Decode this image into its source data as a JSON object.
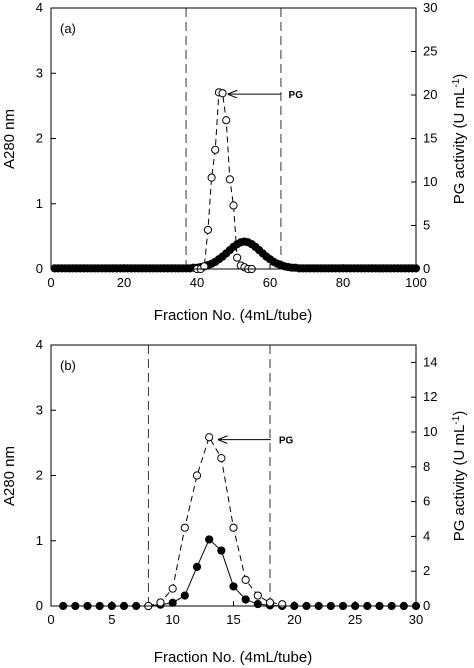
{
  "chart_data": [
    {
      "type": "line",
      "panel_label": "(a)",
      "xlabel": "Fraction No. (4mL/tube)",
      "ylabel": "A280 nm",
      "ylabel_right": "PG activity (U mL",
      "ylabel_right_sup": "-1",
      "ylabel_right_close": ")",
      "xlim": [
        0,
        100
      ],
      "ylim": [
        0,
        4
      ],
      "ylim_right": [
        0,
        30
      ],
      "xticks": [
        0,
        20,
        40,
        60,
        80,
        100
      ],
      "yticks": [
        0,
        1,
        2,
        3,
        4
      ],
      "yticks_right": [
        0,
        5,
        10,
        15,
        20,
        25,
        30
      ],
      "vlines": [
        37,
        63
      ],
      "annotation": {
        "text": "PG",
        "x": 47,
        "y": 2.68
      },
      "series": [
        {
          "axis": "left",
          "marker": "filled",
          "line": "solid",
          "x": [
            1,
            2,
            3,
            4,
            5,
            6,
            7,
            8,
            9,
            10,
            11,
            12,
            13,
            14,
            15,
            16,
            17,
            18,
            19,
            20,
            21,
            22,
            23,
            24,
            25,
            26,
            27,
            28,
            29,
            30,
            31,
            32,
            33,
            34,
            35,
            36,
            37,
            38,
            39,
            40,
            41,
            42,
            43,
            44,
            45,
            46,
            47,
            48,
            49,
            50,
            51,
            52,
            53,
            54,
            55,
            56,
            57,
            58,
            59,
            60,
            61,
            62,
            63,
            64,
            65,
            66,
            67,
            68,
            69,
            70,
            71,
            72,
            73,
            74,
            75,
            76,
            77,
            78,
            79,
            80,
            81,
            82,
            83,
            84,
            85,
            86,
            87,
            88,
            89,
            90,
            91,
            92,
            93,
            94,
            95,
            96,
            97,
            98,
            99,
            100
          ],
          "y": [
            0.01,
            0.01,
            0.01,
            0.01,
            0.01,
            0.01,
            0.01,
            0.01,
            0.01,
            0.01,
            0.01,
            0.01,
            0.01,
            0.01,
            0.01,
            0.01,
            0.01,
            0.01,
            0.01,
            0.01,
            0.01,
            0.01,
            0.01,
            0.01,
            0.01,
            0.01,
            0.01,
            0.01,
            0.01,
            0.01,
            0.01,
            0.01,
            0.01,
            0.01,
            0.01,
            0.01,
            0.01,
            0.01,
            0.02,
            0.02,
            0.03,
            0.04,
            0.06,
            0.08,
            0.11,
            0.15,
            0.19,
            0.24,
            0.29,
            0.34,
            0.38,
            0.41,
            0.42,
            0.41,
            0.38,
            0.34,
            0.29,
            0.24,
            0.19,
            0.15,
            0.11,
            0.08,
            0.06,
            0.04,
            0.03,
            0.02,
            0.02,
            0.01,
            0.01,
            0.01,
            0.01,
            0.01,
            0.01,
            0.01,
            0.01,
            0.01,
            0.01,
            0.01,
            0.01,
            0.01,
            0.01,
            0.01,
            0.01,
            0.01,
            0.01,
            0.01,
            0.01,
            0.01,
            0.01,
            0.01,
            0.01,
            0.01,
            0.01,
            0.01,
            0.01,
            0.01,
            0.01,
            0.01,
            0.01,
            0.01
          ]
        },
        {
          "axis": "right",
          "marker": "open",
          "line": "dashed",
          "x": [
            40,
            41,
            42,
            43,
            44,
            45,
            46,
            47,
            48,
            49,
            50,
            51,
            52,
            53,
            54,
            55
          ],
          "y": [
            0,
            0,
            0.3,
            4.5,
            10.5,
            13.7,
            20.3,
            20.2,
            17.1,
            10.3,
            7.3,
            1.3,
            0.4,
            0.2,
            0,
            0
          ]
        }
      ]
    },
    {
      "type": "line",
      "panel_label": "(b)",
      "xlabel": "Fraction No. (4mL/tube)",
      "ylabel": "A280 nm",
      "ylabel_right": "PG activity (U mL",
      "ylabel_right_sup": "-1",
      "ylabel_right_close": ")",
      "xlim": [
        0,
        30
      ],
      "ylim": [
        0,
        4
      ],
      "ylim_right": [
        0,
        15
      ],
      "xticks": [
        0,
        5,
        10,
        15,
        20,
        25,
        30
      ],
      "yticks": [
        0,
        1,
        2,
        3,
        4
      ],
      "yticks_right": [
        0,
        2,
        4,
        6,
        8,
        10,
        12,
        14
      ],
      "vlines": [
        8,
        18
      ],
      "annotation": {
        "text": "PG",
        "x": 13.3,
        "y": 2.55
      },
      "series": [
        {
          "axis": "left",
          "marker": "filled",
          "line": "solid",
          "x": [
            1,
            2,
            3,
            4,
            5,
            6,
            7,
            8,
            9,
            10,
            11,
            12,
            13,
            14,
            15,
            16,
            17,
            18,
            19,
            20,
            21,
            22,
            23,
            24,
            25,
            26,
            27,
            28,
            29,
            30
          ],
          "y": [
            0,
            0,
            0,
            0,
            0,
            0,
            0,
            0,
            0.02,
            0.05,
            0.16,
            0.6,
            1.02,
            0.85,
            0.3,
            0.1,
            0.03,
            0.01,
            0,
            0,
            0,
            0,
            0,
            0,
            0,
            0,
            0,
            0,
            0,
            0
          ]
        },
        {
          "axis": "right",
          "marker": "open",
          "line": "dashed",
          "x": [
            8,
            9,
            10,
            11,
            12,
            13,
            14,
            15,
            16,
            17,
            18,
            19
          ],
          "y": [
            0,
            0.2,
            1,
            4.5,
            7.5,
            9.7,
            8.5,
            4.5,
            1.5,
            0.6,
            0.2,
            0.1
          ]
        }
      ]
    }
  ]
}
